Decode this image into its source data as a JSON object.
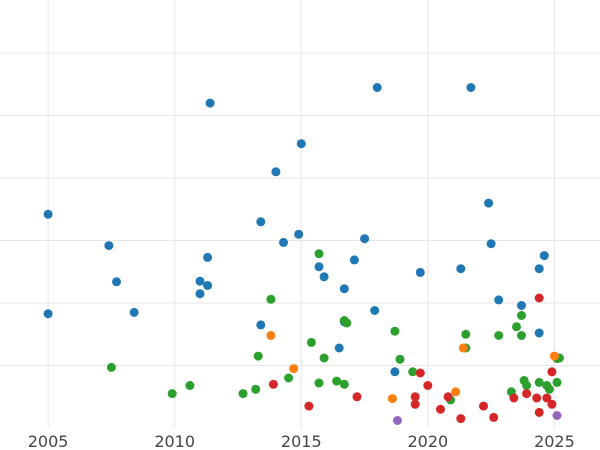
{
  "chart_data": {
    "type": "scatter",
    "title": "",
    "xlabel": "",
    "ylabel": "",
    "xlim": [
      2003.1,
      2026.8
    ],
    "ylim": [
      0,
      6.85
    ],
    "x_ticks": [
      2005,
      2010,
      2015,
      2020,
      2025
    ],
    "y_grid": [
      1,
      2,
      3,
      4,
      5,
      6
    ],
    "grid": true,
    "legend": "none",
    "series": [
      {
        "color": "#1f77b4",
        "points": [
          [
            2005.0,
            3.42
          ],
          [
            2005.0,
            1.83
          ],
          [
            2007.4,
            2.92
          ],
          [
            2007.7,
            2.34
          ],
          [
            2008.4,
            1.85
          ],
          [
            2011.0,
            2.35
          ],
          [
            2011.0,
            2.15
          ],
          [
            2011.3,
            2.73
          ],
          [
            2011.3,
            2.28
          ],
          [
            2011.4,
            5.2
          ],
          [
            2013.4,
            3.3
          ],
          [
            2013.4,
            1.65
          ],
          [
            2014.0,
            4.1
          ],
          [
            2014.3,
            2.97
          ],
          [
            2014.9,
            3.1
          ],
          [
            2015.0,
            4.55
          ],
          [
            2015.7,
            2.58
          ],
          [
            2015.9,
            2.42
          ],
          [
            2016.5,
            1.28
          ],
          [
            2016.7,
            2.23
          ],
          [
            2016.7,
            1.7
          ],
          [
            2017.1,
            2.69
          ],
          [
            2017.5,
            3.03
          ],
          [
            2017.9,
            1.88
          ],
          [
            2018.0,
            5.45
          ],
          [
            2018.7,
            0.9
          ],
          [
            2019.7,
            2.49
          ],
          [
            2021.3,
            2.55
          ],
          [
            2021.7,
            5.45
          ],
          [
            2022.4,
            3.6
          ],
          [
            2022.5,
            2.95
          ],
          [
            2022.8,
            2.05
          ],
          [
            2023.7,
            1.96
          ],
          [
            2024.4,
            2.55
          ],
          [
            2024.4,
            1.52
          ],
          [
            2024.6,
            2.76
          ]
        ]
      },
      {
        "color": "#2ca02c",
        "points": [
          [
            2007.5,
            0.97
          ],
          [
            2009.9,
            0.55
          ],
          [
            2010.6,
            0.68
          ],
          [
            2012.7,
            0.55
          ],
          [
            2013.2,
            0.62
          ],
          [
            2013.3,
            1.15
          ],
          [
            2013.8,
            2.06
          ],
          [
            2014.5,
            0.8
          ],
          [
            2015.4,
            1.37
          ],
          [
            2015.7,
            2.79
          ],
          [
            2015.7,
            0.72
          ],
          [
            2015.9,
            1.12
          ],
          [
            2016.4,
            0.75
          ],
          [
            2016.7,
            0.7
          ],
          [
            2016.7,
            1.72
          ],
          [
            2016.8,
            1.68
          ],
          [
            2018.7,
            1.55
          ],
          [
            2018.9,
            1.1
          ],
          [
            2019.4,
            0.9
          ],
          [
            2020.9,
            0.45
          ],
          [
            2021.5,
            1.5
          ],
          [
            2021.5,
            1.28
          ],
          [
            2022.8,
            1.48
          ],
          [
            2023.3,
            0.58
          ],
          [
            2023.5,
            1.62
          ],
          [
            2023.7,
            1.48
          ],
          [
            2023.7,
            1.8
          ],
          [
            2023.8,
            0.76
          ],
          [
            2023.9,
            0.68
          ],
          [
            2024.4,
            0.73
          ],
          [
            2024.7,
            0.68
          ],
          [
            2024.8,
            0.62
          ],
          [
            2025.1,
            0.73
          ],
          [
            2025.1,
            1.11
          ],
          [
            2025.2,
            1.12
          ]
        ]
      },
      {
        "color": "#ff7f0e",
        "points": [
          [
            2013.8,
            1.48
          ],
          [
            2014.7,
            0.95
          ],
          [
            2018.6,
            0.47
          ],
          [
            2021.1,
            0.58
          ],
          [
            2021.4,
            1.28
          ],
          [
            2025.0,
            1.15
          ]
        ]
      },
      {
        "color": "#d62728",
        "points": [
          [
            2013.9,
            0.7
          ],
          [
            2015.3,
            0.35
          ],
          [
            2017.2,
            0.5
          ],
          [
            2019.5,
            0.5
          ],
          [
            2019.5,
            0.38
          ],
          [
            2019.7,
            0.88
          ],
          [
            2020.0,
            0.68
          ],
          [
            2020.5,
            0.3
          ],
          [
            2020.8,
            0.5
          ],
          [
            2021.3,
            0.15
          ],
          [
            2022.2,
            0.35
          ],
          [
            2022.6,
            0.17
          ],
          [
            2023.4,
            0.48
          ],
          [
            2023.9,
            0.55
          ],
          [
            2024.3,
            0.48
          ],
          [
            2024.4,
            2.08
          ],
          [
            2024.4,
            0.25
          ],
          [
            2024.7,
            0.48
          ],
          [
            2024.9,
            0.38
          ],
          [
            2024.9,
            0.9
          ]
        ]
      },
      {
        "color": "#9467bd",
        "points": [
          [
            2018.8,
            0.12
          ],
          [
            2025.1,
            0.2
          ]
        ]
      }
    ]
  }
}
